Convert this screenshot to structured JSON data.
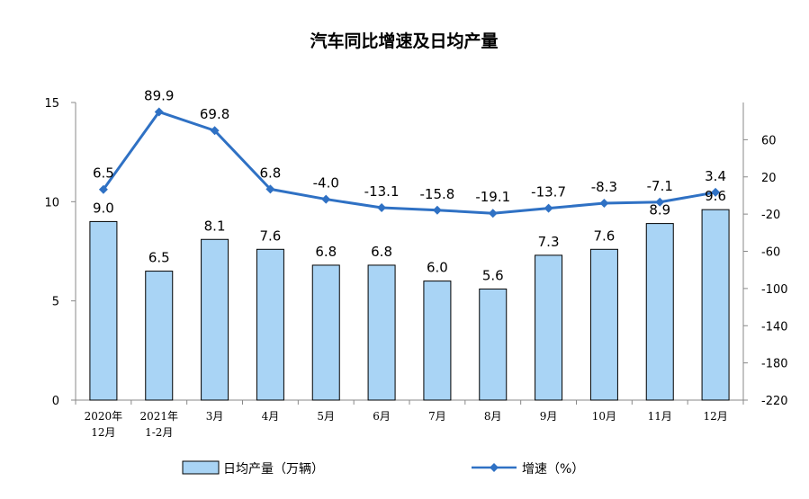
{
  "chart_data": {
    "type": "bar",
    "title": "汽车同比增速及日均产量",
    "categories": [
      [
        "2020年",
        "12月"
      ],
      [
        "2021年",
        "1-2月"
      ],
      [
        "3月"
      ],
      [
        "4月"
      ],
      [
        "5月"
      ],
      [
        "6月"
      ],
      [
        "7月"
      ],
      [
        "8月"
      ],
      [
        "9月"
      ],
      [
        "10月"
      ],
      [
        "11月"
      ],
      [
        "12月"
      ]
    ],
    "series": [
      {
        "name": "日均产量（万辆）",
        "type": "bar",
        "axis": "left",
        "color": "#a9d4f5",
        "values": [
          9.0,
          6.5,
          8.1,
          7.6,
          6.8,
          6.8,
          6.0,
          5.6,
          7.3,
          7.6,
          8.9,
          9.6
        ],
        "labels": [
          "9.0",
          "6.5",
          "8.1",
          "7.6",
          "6.8",
          "6.8",
          "6.0",
          "5.6",
          "7.3",
          "7.6",
          "8.9",
          "9.6"
        ]
      },
      {
        "name": "增速（%）",
        "type": "line",
        "axis": "right",
        "color": "#2f71c4",
        "values": [
          6.5,
          89.9,
          69.8,
          6.8,
          -4.0,
          -13.1,
          -15.8,
          -19.1,
          -13.7,
          -8.3,
          -7.1,
          3.4
        ],
        "labels": [
          "6.5",
          "89.9",
          "69.8",
          "6.8",
          "-4.0",
          "-13.1",
          "-15.8",
          "-19.1",
          "-13.7",
          "-8.3",
          "-7.1",
          "3.4"
        ]
      }
    ],
    "y_left": {
      "range": [
        0,
        15
      ],
      "ticks": [
        "0",
        "5",
        "10",
        "15"
      ]
    },
    "y_right": {
      "range": [
        -220,
        100
      ],
      "ticks": [
        "60",
        "20",
        "-20",
        "-60",
        "-100",
        "-140",
        "-180",
        "-220"
      ],
      "tick_values": [
        60,
        20,
        -20,
        -60,
        -100,
        -140,
        -180,
        -220
      ]
    },
    "grid": false,
    "legend_position": "bottom"
  }
}
